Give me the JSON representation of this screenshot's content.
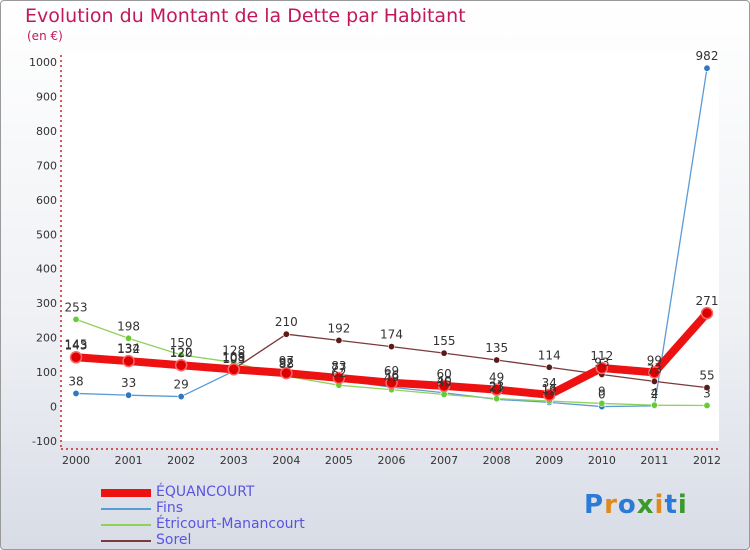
{
  "header": {
    "title": "Evolution du Montant de la Dette par Habitant",
    "subtitle": "(en €)"
  },
  "brand": {
    "logo_text": "Proxiti",
    "letters": [
      "P",
      "r",
      "o",
      "x",
      "i",
      "t",
      "i"
    ],
    "letter_colors": [
      "#2b7bd6",
      "#e08a1e",
      "#2b7bd6",
      "#3a9a2a",
      "#e08a1e",
      "#2b7bd6",
      "#3a9a2a"
    ]
  },
  "chart_data": {
    "type": "line",
    "title": "Evolution du Montant de la Dette par Habitant",
    "ylabel": "(en €)",
    "xlabel": "",
    "ylim": [
      -100,
      1000
    ],
    "yticks": [
      -100,
      0,
      100,
      200,
      300,
      400,
      500,
      600,
      700,
      800,
      900,
      1000
    ],
    "grid": false,
    "legend_position": "bottom-left",
    "categories": [
      "2000",
      "2001",
      "2002",
      "2003",
      "2004",
      "2005",
      "2006",
      "2007",
      "2008",
      "2009",
      "2010",
      "2011",
      "2012"
    ],
    "series": [
      {
        "name": "Fins",
        "color": "#5b9bd5",
        "point_color": "#2f77c0",
        "width": 1.3,
        "values": [
          38,
          33,
          29,
          103,
          92,
          77,
          56,
          40,
          21,
          12,
          0,
          2,
          982
        ],
        "labels": [
          "38",
          "33",
          "29",
          "103",
          "92",
          "77",
          "56",
          "40",
          "21",
          "12",
          "0",
          "2",
          "982"
        ]
      },
      {
        "name": "Étricourt-Manancourt",
        "color": "#8fd15b",
        "point_color": "#66cc33",
        "width": 1.3,
        "values": [
          253,
          198,
          150,
          128,
          88,
          62,
          49,
          35,
          23,
          16,
          9,
          4,
          3
        ],
        "labels": [
          "253",
          "198",
          "150",
          "128",
          "88",
          "62",
          "49",
          "35",
          "23",
          "16",
          "9",
          "4",
          "3"
        ]
      },
      {
        "name": "Sorel",
        "color": "#7a3a3a",
        "point_color": "#5c1a1a",
        "width": 1.3,
        "values": [
          145,
          134,
          122,
          109,
          210,
          192,
          174,
          155,
          135,
          114,
          93,
          73,
          55
        ],
        "labels": [
          "145",
          "134",
          "122",
          "109",
          "210",
          "192",
          "174",
          "155",
          "135",
          "114",
          "93",
          "73",
          "55"
        ]
      },
      {
        "name": "ÉQUANCOURT",
        "color": "#ee1111",
        "point_color": "#dd0000",
        "width": 8,
        "values": [
          143,
          132,
          120,
          108,
          97,
          83,
          69,
          60,
          49,
          34,
          112,
          99,
          271
        ],
        "labels": [
          "143",
          "132",
          "120",
          "108",
          "97",
          "83",
          "69",
          "60",
          "49",
          "34",
          "112",
          "99",
          "271"
        ]
      }
    ],
    "legend": [
      "ÉQUANCOURT",
      "Fins",
      "Étricourt-Manancourt",
      "Sorel"
    ]
  }
}
